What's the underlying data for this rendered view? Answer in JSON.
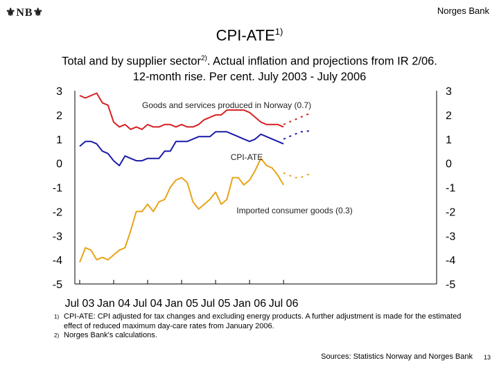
{
  "header": {
    "logo": "NB",
    "bank_name": "Norges Bank"
  },
  "title": {
    "main": "CPI-ATE",
    "sup": "1)"
  },
  "subtitle": {
    "line1_pre": "Total and by supplier sector",
    "line1_sup": "2)",
    "line1_post": ". Actual inflation and projections from IR 2/06.",
    "line2": "12-month rise. Per cent. July 2003 - July 2006"
  },
  "chart_data": {
    "type": "line",
    "x_index_start": "Jul 03",
    "x_categories": [
      "Jul 03",
      "Aug 03",
      "Sep 03",
      "Oct 03",
      "Nov 03",
      "Dec 03",
      "Jan 04",
      "Feb 04",
      "Mar 04",
      "Apr 04",
      "May 04",
      "Jun 04",
      "Jul 04",
      "Aug 04",
      "Sep 04",
      "Oct 04",
      "Nov 04",
      "Dec 04",
      "Jan 05",
      "Feb 05",
      "Mar 05",
      "Apr 05",
      "May 05",
      "Jun 05",
      "Jul 05",
      "Aug 05",
      "Sep 05",
      "Oct 05",
      "Nov 05",
      "Dec 05",
      "Jan 06",
      "Feb 06",
      "Mar 06",
      "Apr 06",
      "May 06",
      "Jun 06",
      "Jul 06",
      "Aug 06",
      "Sep 06",
      "Oct 06",
      "Nov 06",
      "Dec 06"
    ],
    "x_tick_labels": [
      "Jul 03",
      "Jan 04",
      "Jul 04",
      "Jan 05",
      "Jul 05",
      "Jan 06",
      "Jul 06"
    ],
    "x_tick_index": [
      0,
      6,
      12,
      18,
      24,
      30,
      36
    ],
    "ylim": [
      -5,
      3
    ],
    "y_ticks": [
      3,
      2,
      1,
      0,
      -1,
      -2,
      -3,
      -4,
      -5
    ],
    "series": [
      {
        "name": "Goods and services produced in Norway (0.7)",
        "label_text": "Goods and services produced in Norway (0.7)",
        "color": "#d62020",
        "actual": [
          2.8,
          2.7,
          2.8,
          2.9,
          2.5,
          2.4,
          1.7,
          1.5,
          1.6,
          1.4,
          1.5,
          1.4,
          1.6,
          1.5,
          1.5,
          1.6,
          1.6,
          1.5,
          1.6,
          1.5,
          1.5,
          1.6,
          1.8,
          1.9,
          2.0,
          2.0,
          2.2,
          2.2,
          2.2,
          2.2,
          2.1,
          1.9,
          1.7,
          1.6,
          1.6,
          1.6,
          1.5
        ],
        "projection_start": 36,
        "projection": [
          1.6,
          1.7,
          1.8,
          1.9,
          2.0,
          2.1
        ]
      },
      {
        "name": "CPI-ATE",
        "label_text": "CPI-ATE",
        "color": "#1a1aa8",
        "actual": [
          0.7,
          0.9,
          0.9,
          0.8,
          0.5,
          0.4,
          0.1,
          -0.1,
          0.3,
          0.2,
          0.1,
          0.1,
          0.2,
          0.2,
          0.2,
          0.5,
          0.5,
          0.9,
          0.9,
          0.9,
          1.0,
          1.1,
          1.1,
          1.1,
          1.3,
          1.3,
          1.3,
          1.2,
          1.1,
          1.0,
          0.9,
          1.0,
          1.2,
          1.1,
          1.0,
          0.9,
          0.8
        ],
        "projection_start": 36,
        "projection": [
          1.0,
          1.1,
          1.2,
          1.3,
          1.3,
          1.4
        ]
      },
      {
        "name": "Imported consumer goods (0.3)",
        "label_text": "Imported consumer goods (0.3)",
        "color": "#e8a317",
        "actual": [
          -4.1,
          -3.5,
          -3.6,
          -4.0,
          -3.9,
          -4.0,
          -3.8,
          -3.6,
          -3.5,
          -2.8,
          -2.0,
          -2.0,
          -1.7,
          -2.0,
          -1.6,
          -1.5,
          -1.0,
          -0.7,
          -0.6,
          -0.8,
          -1.6,
          -1.9,
          -1.7,
          -1.5,
          -1.2,
          -1.7,
          -1.5,
          -0.6,
          -0.6,
          -0.9,
          -0.7,
          -0.3,
          0.2,
          -0.1,
          -0.2,
          -0.5,
          -0.9
        ],
        "projection_start": 36,
        "projection": [
          -0.4,
          -0.5,
          -0.6,
          -0.6,
          -0.5,
          -0.4
        ]
      }
    ]
  },
  "footnotes": [
    {
      "mark": "1)",
      "text": "CPI-ATE: CPI adjusted for tax changes and excluding energy products. A further adjustment is made for the estimated effect of reduced maximum day-care rates from January 2006."
    },
    {
      "mark": "2)",
      "text": "Norges Bank's calculations."
    }
  ],
  "sources": "Sources: Statistics Norway and Norges Bank",
  "page_number": "13"
}
